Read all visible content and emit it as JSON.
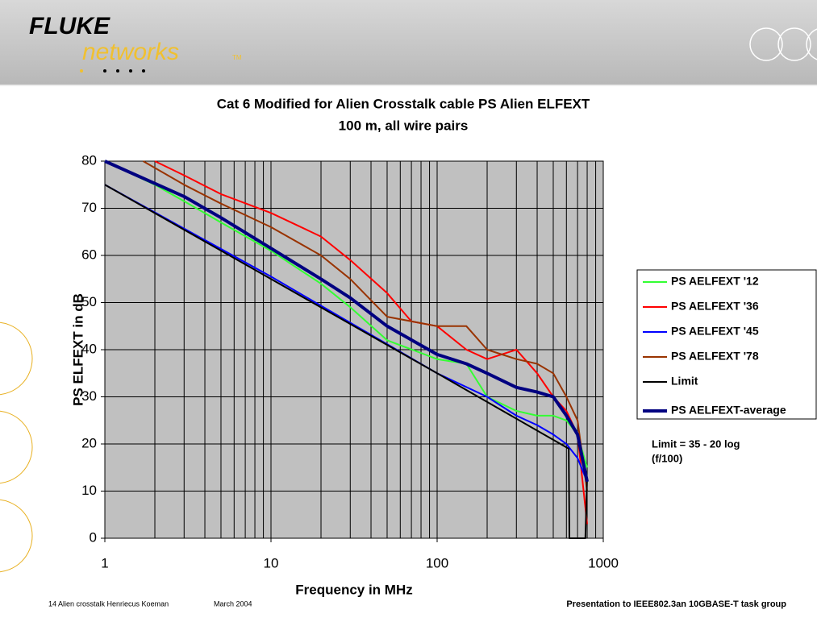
{
  "header": {
    "logo_top": "FLUKE",
    "logo_bottom": "networks",
    "logo_tm": "TM"
  },
  "chart_data": {
    "type": "line",
    "title": "Cat 6 Modified for Alien Crosstalk cable PS Alien ELFEXT",
    "subtitle": "100 m, all wire pairs",
    "x_label": "Frequency in MHz",
    "y_label": "PS ELFEXT in dB",
    "log_x": true,
    "grid": true,
    "plot_background": "#c0c0c0",
    "xlim": [
      1,
      1000
    ],
    "xticks": [
      1,
      10,
      100,
      1000
    ],
    "xgrid_minor": [
      2,
      3,
      4,
      5,
      6,
      7,
      8,
      9,
      20,
      30,
      40,
      50,
      60,
      70,
      80,
      90,
      200,
      300,
      400,
      500,
      600,
      700,
      800,
      900
    ],
    "ylim": [
      0,
      80
    ],
    "yticks": [
      0,
      10,
      20,
      30,
      40,
      50,
      60,
      70,
      80
    ],
    "legend": "right",
    "series": [
      {
        "name": "PS AELFEXT '12",
        "color": "#33ff33",
        "width": 2,
        "x": [
          1,
          2,
          3,
          5,
          10,
          20,
          30,
          50,
          100,
          150,
          200,
          300,
          400,
          500,
          600,
          700,
          800
        ],
        "values": [
          80,
          75,
          71.5,
          67,
          61,
          54,
          49,
          42,
          38,
          37,
          30,
          27,
          26,
          26,
          25,
          22,
          15
        ]
      },
      {
        "name": "PS AELFEXT '36",
        "color": "#ff0000",
        "width": 2,
        "x": [
          2,
          3,
          5,
          10,
          20,
          30,
          50,
          70,
          100,
          150,
          200,
          300,
          400,
          500,
          600,
          700,
          800
        ],
        "values": [
          80,
          77,
          73,
          69,
          64,
          59,
          52,
          46,
          45,
          40,
          38,
          40,
          35,
          30,
          27,
          22,
          3
        ]
      },
      {
        "name": "PS AELFEXT '45",
        "color": "#0000ff",
        "width": 2,
        "x": [
          1,
          10,
          100,
          200,
          300,
          400,
          500,
          600,
          700,
          800
        ],
        "values": [
          75,
          55.5,
          35,
          30,
          26,
          24,
          22,
          20,
          17,
          12
        ]
      },
      {
        "name": "PS AELFEXT '78",
        "color": "#993300",
        "width": 2,
        "x": [
          1.7,
          3,
          5,
          10,
          20,
          30,
          50,
          100,
          150,
          200,
          300,
          400,
          500,
          600,
          700,
          800
        ],
        "values": [
          80,
          75,
          71,
          66,
          60,
          55,
          47,
          45,
          45,
          40,
          38,
          37,
          35,
          30,
          25,
          10
        ]
      },
      {
        "name": "Limit",
        "color": "#000000",
        "width": 2,
        "x": [
          1,
          10,
          100,
          620,
          625,
          780,
          800
        ],
        "values": [
          75,
          55,
          35,
          19,
          0,
          0,
          13
        ]
      },
      {
        "name": "PS AELFEXT-average",
        "color": "#000080",
        "width": 4,
        "x": [
          1,
          3,
          5,
          10,
          20,
          30,
          50,
          100,
          150,
          200,
          300,
          400,
          500,
          600,
          700,
          800
        ],
        "values": [
          80,
          72.5,
          68,
          61.5,
          55,
          51,
          45,
          39,
          37,
          35,
          32,
          31,
          30,
          26,
          22,
          12
        ]
      }
    ],
    "annotations": [
      "Limit = 35 - 20 log",
      "(f/100)"
    ]
  },
  "footer": {
    "left": "14 Alien crosstalk Henriecus Koeman",
    "date": "March 2004",
    "right": "Presentation to IEEE802.3an 10GBASE-T task group"
  }
}
